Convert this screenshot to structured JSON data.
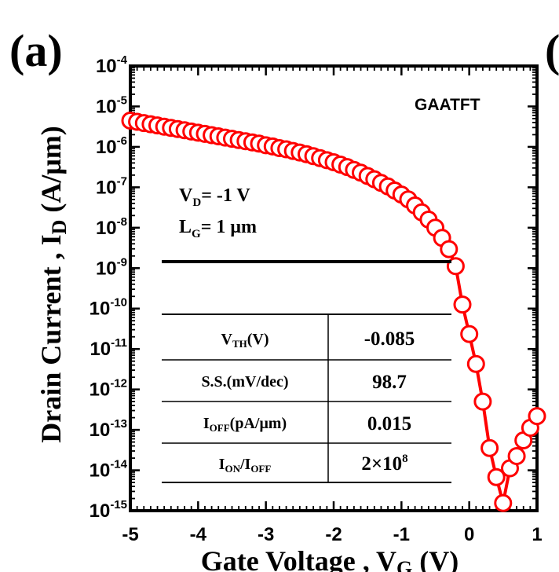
{
  "panel_label": "(a)",
  "edge_fragment": "(",
  "chart_data": {
    "type": "scatter",
    "xlabel": {
      "main": "Gate Voltage , V",
      "sub": "G",
      "unit": " (V)"
    },
    "ylabel": {
      "main": "Drain Current , I",
      "sub": "D",
      "unit": " (A/μm)"
    },
    "x_ticks": [
      "-5",
      "-4",
      "-3",
      "-2",
      "-1",
      "0",
      "1"
    ],
    "y_ticks": [
      {
        "base": "10",
        "exp": "-4"
      },
      {
        "base": "10",
        "exp": "-5"
      },
      {
        "base": "10",
        "exp": "-6"
      },
      {
        "base": "10",
        "exp": "-7"
      },
      {
        "base": "10",
        "exp": "-8"
      },
      {
        "base": "10",
        "exp": "-9"
      },
      {
        "base": "10",
        "exp": "-10"
      },
      {
        "base": "10",
        "exp": "-11"
      },
      {
        "base": "10",
        "exp": "-12"
      },
      {
        "base": "10",
        "exp": "-13"
      },
      {
        "base": "10",
        "exp": "-14"
      },
      {
        "base": "10",
        "exp": "-15"
      }
    ],
    "xlim": [
      -5,
      1
    ],
    "ylim_log10": [
      -15,
      -4
    ],
    "y_scale": "log",
    "grid": false,
    "series_color": "#ff0000",
    "legend_text": "GAATFT",
    "annotation": {
      "vd": {
        "main": "V",
        "sub": "D",
        "rest": "= -1 V"
      },
      "lg": {
        "main": "L",
        "sub": "G",
        "rest": "= 1 μm"
      }
    },
    "table": [
      {
        "param": {
          "main": "V",
          "sub": "TH",
          "rest": "(V)"
        },
        "value": "-0.085"
      },
      {
        "param": {
          "main": "S.S.(mV/dec)",
          "sub": "",
          "rest": ""
        },
        "value": "98.7"
      },
      {
        "param": {
          "main": "I",
          "sub": "OFF",
          "rest": "(pA/μm)"
        },
        "value": "0.015"
      },
      {
        "param": {
          "main": "I",
          "sub": "ON",
          "rest": "/I",
          "sub2": "OFF"
        },
        "value": "2×10",
        "value_exp": "8"
      }
    ],
    "points": [
      [
        -5.0,
        -5.35
      ],
      [
        -4.9,
        -5.38
      ],
      [
        -4.8,
        -5.41
      ],
      [
        -4.7,
        -5.44
      ],
      [
        -4.6,
        -5.47
      ],
      [
        -4.5,
        -5.5
      ],
      [
        -4.4,
        -5.53
      ],
      [
        -4.3,
        -5.56
      ],
      [
        -4.2,
        -5.59
      ],
      [
        -4.1,
        -5.62
      ],
      [
        -4.0,
        -5.65
      ],
      [
        -3.9,
        -5.68
      ],
      [
        -3.8,
        -5.71
      ],
      [
        -3.7,
        -5.74
      ],
      [
        -3.6,
        -5.77
      ],
      [
        -3.5,
        -5.8
      ],
      [
        -3.4,
        -5.83
      ],
      [
        -3.3,
        -5.86
      ],
      [
        -3.2,
        -5.89
      ],
      [
        -3.1,
        -5.92
      ],
      [
        -3.0,
        -5.96
      ],
      [
        -2.9,
        -5.99
      ],
      [
        -2.8,
        -6.03
      ],
      [
        -2.7,
        -6.06
      ],
      [
        -2.6,
        -6.1
      ],
      [
        -2.5,
        -6.14
      ],
      [
        -2.4,
        -6.18
      ],
      [
        -2.3,
        -6.23
      ],
      [
        -2.2,
        -6.28
      ],
      [
        -2.1,
        -6.33
      ],
      [
        -2.0,
        -6.38
      ],
      [
        -1.9,
        -6.44
      ],
      [
        -1.8,
        -6.5
      ],
      [
        -1.7,
        -6.57
      ],
      [
        -1.6,
        -6.64
      ],
      [
        -1.5,
        -6.72
      ],
      [
        -1.4,
        -6.8
      ],
      [
        -1.3,
        -6.89
      ],
      [
        -1.2,
        -6.98
      ],
      [
        -1.1,
        -7.08
      ],
      [
        -1.0,
        -7.18
      ],
      [
        -0.9,
        -7.3
      ],
      [
        -0.8,
        -7.45
      ],
      [
        -0.7,
        -7.62
      ],
      [
        -0.6,
        -7.8
      ],
      [
        -0.5,
        -8.0
      ],
      [
        -0.4,
        -8.25
      ],
      [
        -0.3,
        -8.53
      ],
      [
        -0.2,
        -8.95
      ],
      [
        -0.1,
        -9.9
      ],
      [
        0.0,
        -10.63
      ],
      [
        0.1,
        -11.37
      ],
      [
        0.2,
        -12.3
      ],
      [
        0.3,
        -13.45
      ],
      [
        0.4,
        -14.17
      ],
      [
        0.5,
        -14.81
      ],
      [
        0.6,
        -13.95
      ],
      [
        0.7,
        -13.65
      ],
      [
        0.8,
        -13.26
      ],
      [
        0.9,
        -12.95
      ],
      [
        1.0,
        -12.66
      ]
    ]
  }
}
